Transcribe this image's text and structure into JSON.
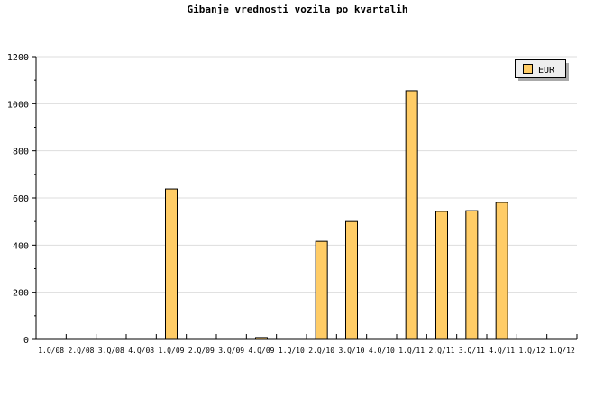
{
  "chart_data": {
    "type": "bar",
    "title": "Gibanje vrednosti vozila po kvartalih",
    "xlabel": "",
    "ylabel": "",
    "categories": [
      "1.Q/08",
      "2.Q/08",
      "3.Q/08",
      "4.Q/08",
      "1.Q/09",
      "2.Q/09",
      "3.Q/09",
      "4.Q/09",
      "1.Q/10",
      "2.Q/10",
      "3.Q/10",
      "4.Q/10",
      "1.Q/11",
      "2.Q/11",
      "3.Q/11",
      "4.Q/11",
      "1.Q/12",
      "1.Q/12"
    ],
    "series": [
      {
        "name": "EUR",
        "color": "#ffcc66",
        "values": [
          0,
          0,
          0,
          0,
          638,
          0,
          0,
          8,
          0,
          416,
          500,
          0,
          1055,
          543,
          546,
          581,
          0,
          0
        ]
      }
    ],
    "ylim": [
      0,
      1200
    ],
    "yticks": [
      0,
      200,
      400,
      600,
      800,
      1000,
      1200
    ],
    "grid": true,
    "legend": "top-right"
  }
}
